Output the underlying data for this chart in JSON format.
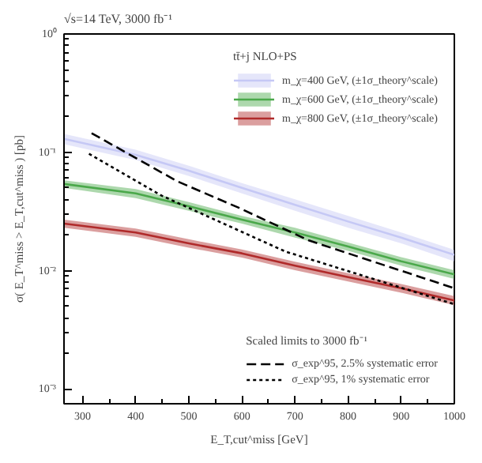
{
  "chart_data": {
    "type": "line",
    "title": "√s=14 TeV, 3000 fb⁻¹",
    "xlabel": "E_T,cut^miss [GeV]",
    "ylabel": "σ( E_T^miss > E_T,cut^miss ) [pb]",
    "legend_title": "tt̄+j NLO+PS",
    "legend": "right",
    "log": "y",
    "grid": false,
    "annotations": [
      "Scaled limits to 3000 fb⁻¹"
    ],
    "xlim": [
      265,
      1000
    ],
    "ylim": [
      0.00075,
      1
    ],
    "xticks": [
      300,
      400,
      500,
      600,
      700,
      800,
      900,
      1000
    ],
    "yticks": [
      {
        "value": 0.001,
        "label": "10⁻³"
      },
      {
        "value": 0.01,
        "label": "10⁻²"
      },
      {
        "value": 0.1,
        "label": "10⁻¹"
      },
      {
        "value": 1,
        "label": "10⁰"
      }
    ],
    "series": [
      {
        "name": "m_χ=400 GeV, (±1σ_theory^scale)",
        "color": "#c5c8f5",
        "line_style": "solid",
        "x": [
          265,
          400,
          500,
          600,
          700,
          800,
          900,
          1000
        ],
        "values": [
          0.13,
          0.095,
          0.07,
          0.05,
          0.036,
          0.026,
          0.019,
          0.0136
        ],
        "lower": [
          0.117,
          0.086,
          0.063,
          0.045,
          0.032,
          0.023,
          0.017,
          0.012
        ],
        "upper": [
          0.143,
          0.105,
          0.077,
          0.055,
          0.04,
          0.029,
          0.021,
          0.015
        ]
      },
      {
        "name": "m_χ=600 GeV, (±1σ_theory^scale)",
        "color": "#4aa84a",
        "line_style": "solid",
        "x": [
          265,
          400,
          500,
          600,
          700,
          800,
          900,
          1000
        ],
        "values": [
          0.054,
          0.045,
          0.035,
          0.027,
          0.021,
          0.016,
          0.012,
          0.0093
        ],
        "lower": [
          0.05,
          0.041,
          0.032,
          0.025,
          0.019,
          0.0147,
          0.011,
          0.0085
        ],
        "upper": [
          0.058,
          0.049,
          0.038,
          0.029,
          0.023,
          0.0173,
          0.013,
          0.0101
        ]
      },
      {
        "name": "m_χ=800 GeV, (±1σ_theory^scale)",
        "color": "#b02a2a",
        "line_style": "solid",
        "x": [
          265,
          400,
          500,
          600,
          700,
          800,
          900,
          1000
        ],
        "values": [
          0.025,
          0.021,
          0.017,
          0.014,
          0.011,
          0.0088,
          0.0071,
          0.0056
        ],
        "lower": [
          0.023,
          0.0193,
          0.0156,
          0.0129,
          0.0101,
          0.0081,
          0.0065,
          0.0051
        ],
        "upper": [
          0.027,
          0.0227,
          0.0184,
          0.0151,
          0.0119,
          0.0095,
          0.0077,
          0.0061
        ]
      },
      {
        "name": "σ_exp^95, 2.5% systematic error",
        "color": "#000000",
        "line_style": "dashed",
        "x": [
          317,
          478,
          594,
          726,
          1000
        ],
        "values": [
          0.145,
          0.057,
          0.034,
          0.018,
          0.0071
        ]
      },
      {
        "name": "σ_exp^95, 1% systematic error",
        "color": "#000000",
        "line_style": "dotted",
        "x": [
          312,
          449,
          682,
          1000
        ],
        "values": [
          0.097,
          0.043,
          0.0145,
          0.0052
        ]
      }
    ]
  }
}
